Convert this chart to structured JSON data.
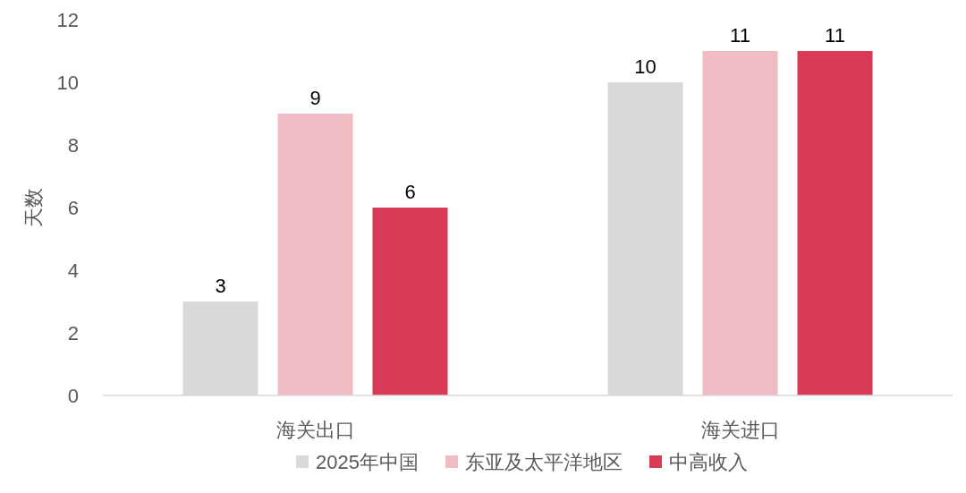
{
  "chart_data": {
    "type": "bar",
    "ylabel": "天数",
    "categories": [
      "海关出口",
      "海关进口"
    ],
    "series": [
      {
        "name": "2025年中国",
        "color": "#d9d9d9",
        "values": [
          3,
          10
        ]
      },
      {
        "name": "东亚及太平洋地区",
        "color": "#f0bcc4",
        "values": [
          9,
          11
        ]
      },
      {
        "name": "中高收入",
        "color": "#d93a55",
        "values": [
          6,
          11
        ]
      }
    ],
    "ylim": [
      0,
      12
    ],
    "yticks": [
      0,
      2,
      4,
      6,
      8,
      10,
      12
    ],
    "data_labels": true,
    "legend": "bottom",
    "grid": false
  }
}
